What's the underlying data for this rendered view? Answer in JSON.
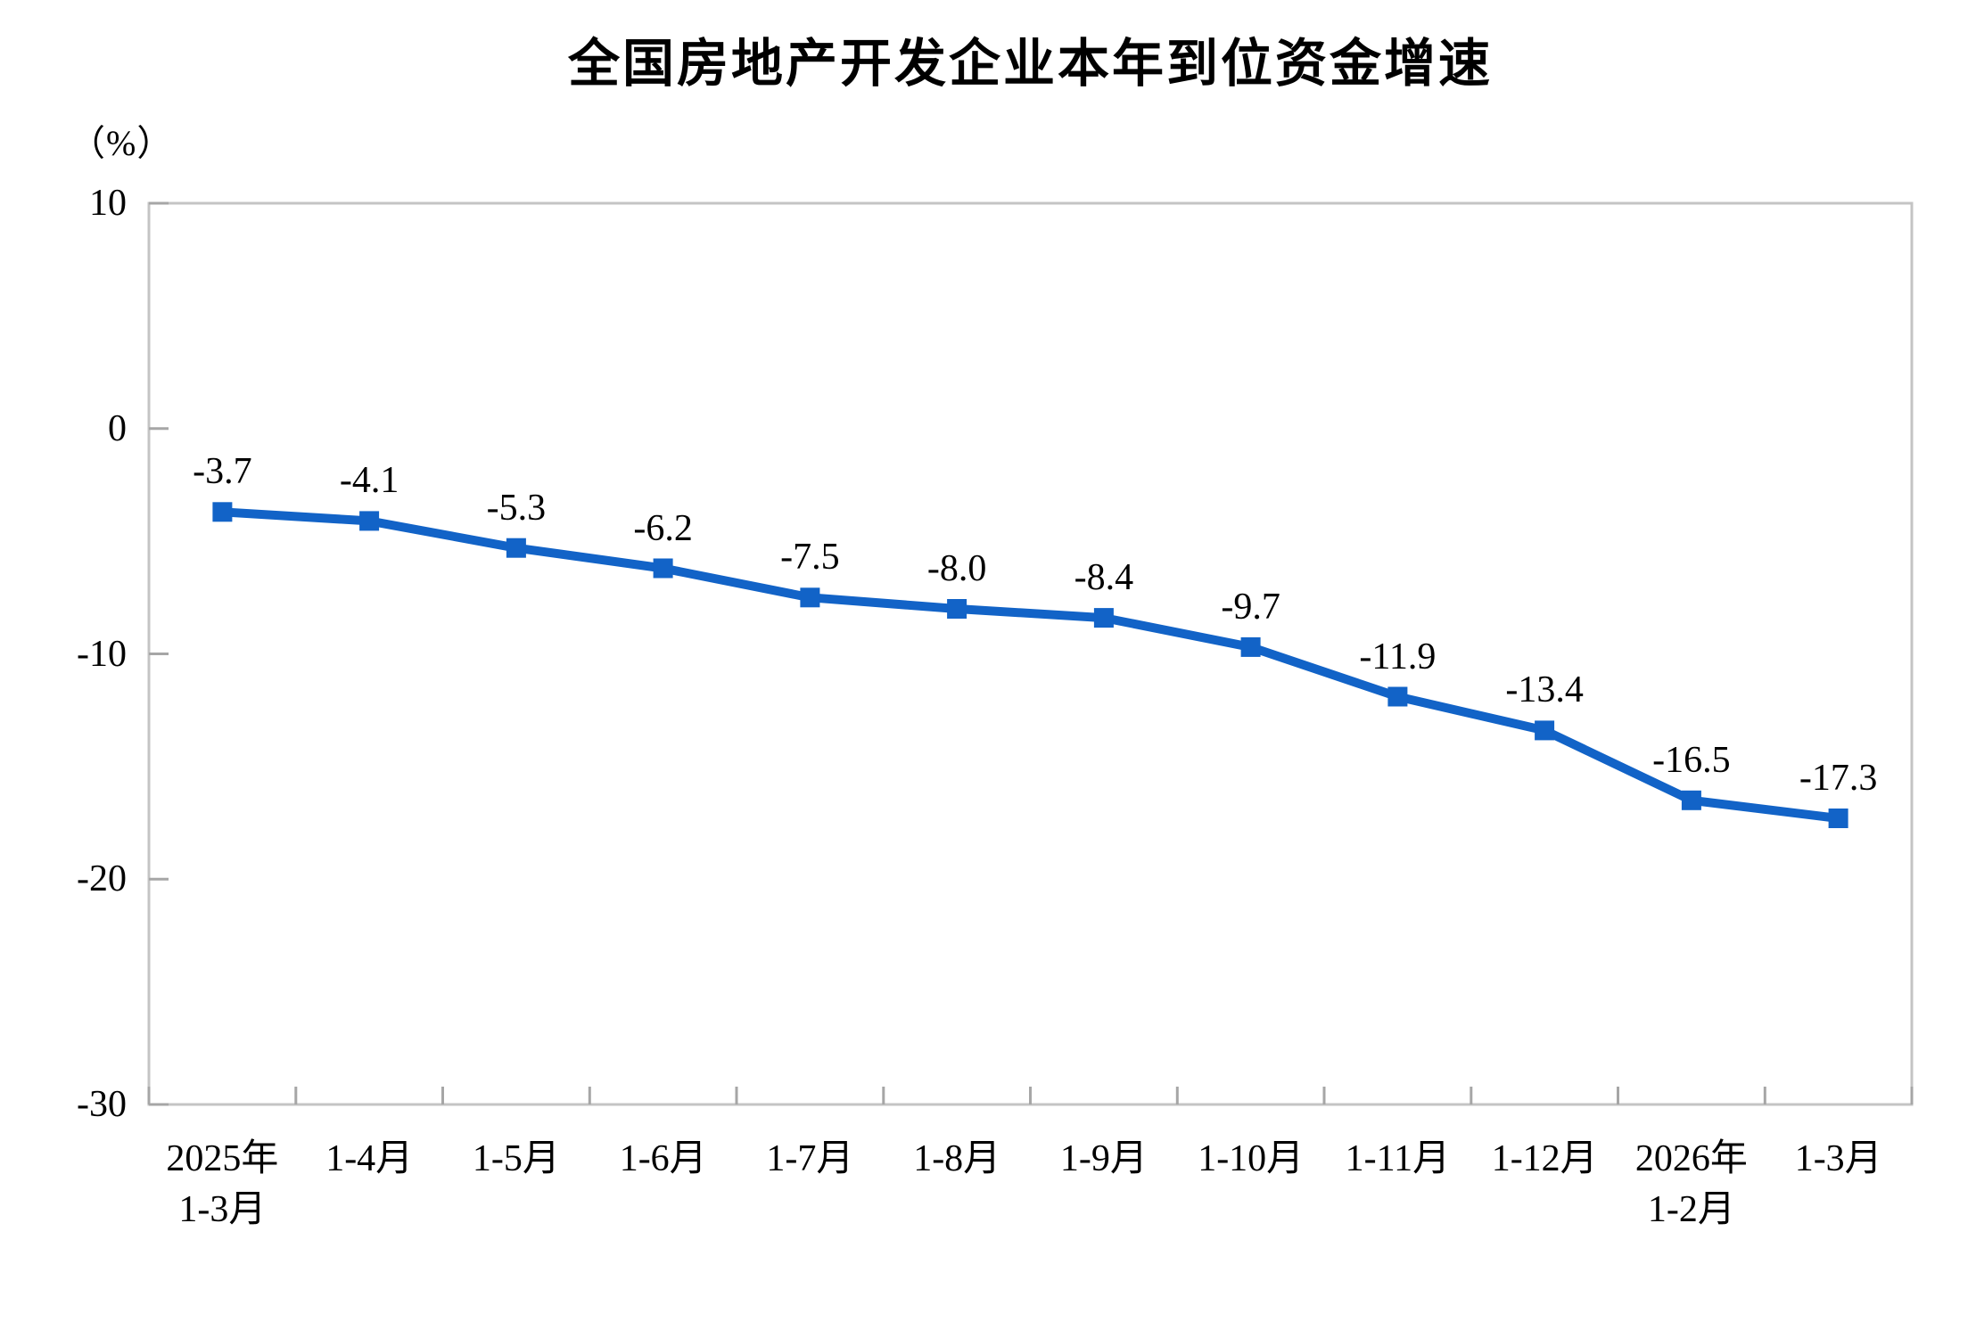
{
  "chart_data": {
    "type": "line",
    "title": "全国房地产开发企业本年到位资金增速",
    "unit_label": "（%）",
    "categories": [
      "2025年\n1-3月",
      "1-4月",
      "1-5月",
      "1-6月",
      "1-7月",
      "1-8月",
      "1-9月",
      "1-10月",
      "1-11月",
      "1-12月",
      "2026年\n1-2月",
      "1-3月"
    ],
    "values": [
      -3.7,
      -4.1,
      -5.3,
      -6.2,
      -7.5,
      -8.0,
      -8.4,
      -9.7,
      -11.9,
      -13.4,
      -16.5,
      -17.3
    ],
    "data_labels": [
      "-3.7",
      "-4.1",
      "-5.3",
      "-6.2",
      "-7.5",
      "-8.0",
      "-8.4",
      "-9.7",
      "-11.9",
      "-13.4",
      "-16.5",
      "-17.3"
    ],
    "xlabel": "",
    "ylabel": "",
    "ylim": [
      -30,
      10
    ],
    "yticks": [
      10,
      0,
      -10,
      -20,
      -30
    ],
    "grid": false,
    "legend": "none",
    "marker": "square",
    "colors": {
      "series": "#1263c7",
      "plot_border": "#c4c4c4",
      "tick": "#a6a6a6",
      "text": "#000000",
      "background": "#ffffff"
    }
  }
}
